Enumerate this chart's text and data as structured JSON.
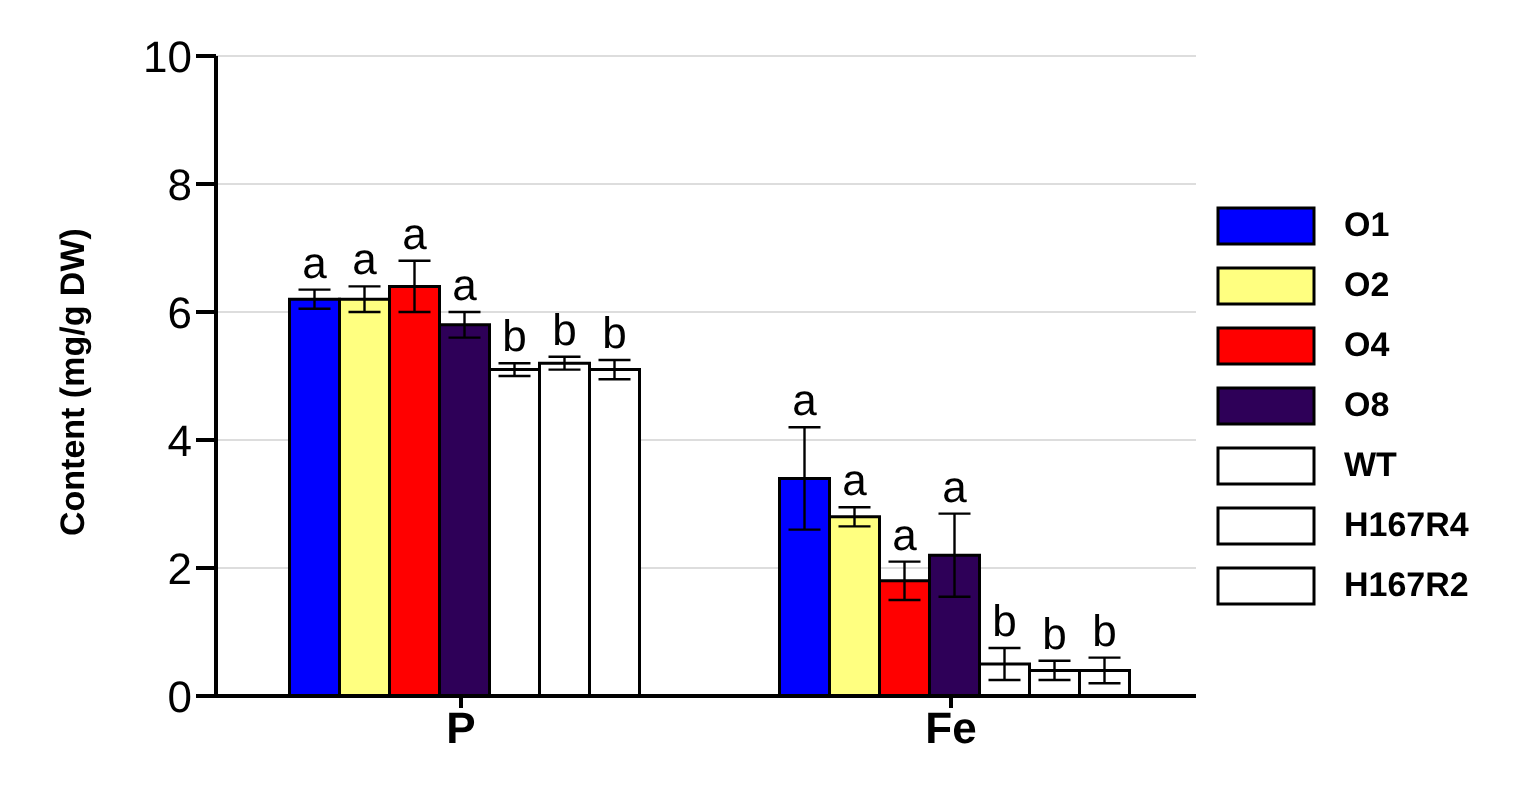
{
  "chart_data": {
    "type": "bar",
    "ylabel": "Content (mg/g DW)",
    "categories": [
      "P",
      "Fe"
    ],
    "series": [
      {
        "name": "O1",
        "color": "#0000ff",
        "values": [
          6.2,
          3.4
        ],
        "errors": [
          0.15,
          0.8
        ],
        "value_labels": [
          "a",
          "a"
        ]
      },
      {
        "name": "O2",
        "color": "#ffff80",
        "values": [
          6.2,
          2.8
        ],
        "errors": [
          0.2,
          0.15
        ],
        "value_labels": [
          "a",
          "a"
        ]
      },
      {
        "name": "O4",
        "color": "#ff0000",
        "values": [
          6.4,
          1.8
        ],
        "errors": [
          0.4,
          0.3
        ],
        "value_labels": [
          "a",
          "a"
        ]
      },
      {
        "name": "O8",
        "color": "#2e0058",
        "values": [
          5.8,
          2.2
        ],
        "errors": [
          0.2,
          0.65
        ],
        "value_labels": [
          "a",
          "a"
        ]
      },
      {
        "name": "WT",
        "color": "#ffffff",
        "values": [
          5.1,
          0.5
        ],
        "errors": [
          0.1,
          0.25
        ],
        "value_labels": [
          "b",
          "b"
        ]
      },
      {
        "name": "H167R4",
        "color": "#ffffff",
        "values": [
          5.2,
          0.4
        ],
        "errors": [
          0.1,
          0.15
        ],
        "value_labels": [
          "b",
          "b"
        ]
      },
      {
        "name": "H167R2",
        "color": "#ffffff",
        "values": [
          5.1,
          0.4
        ],
        "errors": [
          0.15,
          0.2
        ],
        "value_labels": [
          "b",
          "b"
        ]
      }
    ],
    "ylim": [
      0,
      10
    ],
    "yticks": [
      0,
      2,
      4,
      6,
      8,
      10
    ],
    "grid": "y",
    "legend": "right"
  }
}
